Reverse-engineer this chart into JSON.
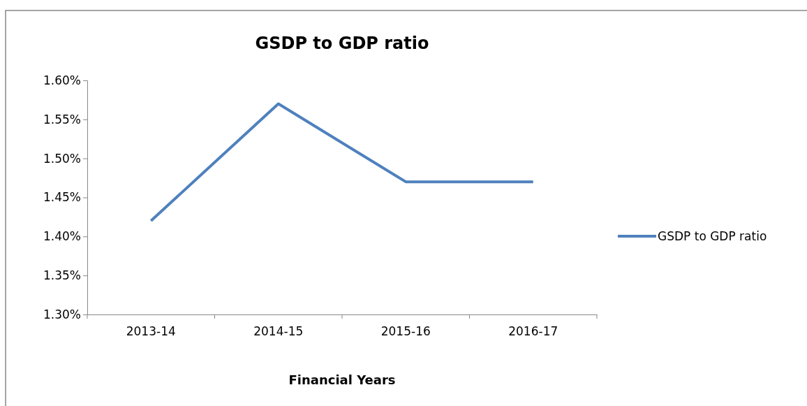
{
  "chart_data": {
    "type": "line",
    "title": "GSDP to GDP ratio",
    "xlabel": "Financial Years",
    "categories": [
      "2013-14",
      "2014-15",
      "2015-16",
      "2016-17"
    ],
    "series": [
      {
        "name": "GSDP to GDP ratio",
        "color": "#4f81bd",
        "values": [
          1.42,
          1.57,
          1.47,
          1.47
        ]
      }
    ],
    "ylim": [
      1.3,
      1.6
    ],
    "yticks": [
      {
        "value": 1.3,
        "label": "1.30%"
      },
      {
        "value": 1.35,
        "label": "1.35%"
      },
      {
        "value": 1.4,
        "label": "1.40%"
      },
      {
        "value": 1.45,
        "label": "1.45%"
      },
      {
        "value": 1.5,
        "label": "1.50%"
      },
      {
        "value": 1.55,
        "label": "1.55%"
      },
      {
        "value": 1.6,
        "label": "1.60%"
      }
    ],
    "grid": false,
    "legend": "right",
    "marker": "none",
    "line_style": "solid"
  }
}
